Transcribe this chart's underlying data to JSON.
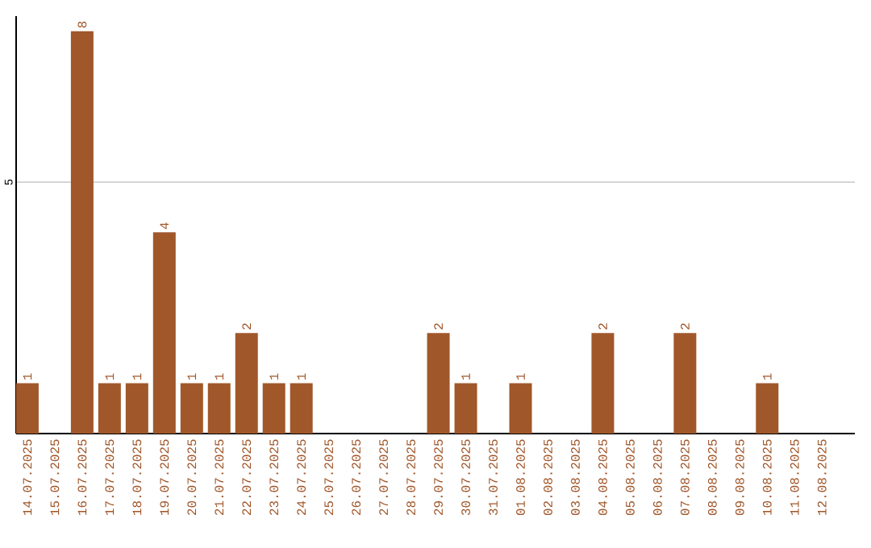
{
  "chart_data": {
    "type": "bar",
    "categories": [
      "14.07.2025",
      "15.07.2025",
      "16.07.2025",
      "17.07.2025",
      "18.07.2025",
      "19.07.2025",
      "20.07.2025",
      "21.07.2025",
      "22.07.2025",
      "23.07.2025",
      "24.07.2025",
      "25.07.2025",
      "26.07.2025",
      "27.07.2025",
      "28.07.2025",
      "29.07.2025",
      "30.07.2025",
      "31.07.2025",
      "01.08.2025",
      "02.08.2025",
      "03.08.2025",
      "04.08.2025",
      "05.08.2025",
      "06.08.2025",
      "07.08.2025",
      "08.08.2025",
      "09.08.2025",
      "10.08.2025",
      "11.08.2025",
      "12.08.2025"
    ],
    "values": [
      1,
      0,
      8,
      1,
      1,
      4,
      1,
      1,
      2,
      1,
      1,
      0,
      0,
      0,
      0,
      2,
      1,
      0,
      1,
      0,
      0,
      2,
      0,
      0,
      2,
      0,
      0,
      1,
      0,
      0
    ],
    "value_labels": [
      "1",
      null,
      "8",
      "1",
      "1",
      "4",
      "1",
      "1",
      "2",
      "1",
      "1",
      null,
      null,
      null,
      null,
      "2",
      "1",
      null,
      "1",
      null,
      null,
      "2",
      null,
      null,
      "2",
      null,
      null,
      "1",
      null,
      null
    ],
    "color": "#a0572a",
    "ylim": [
      0,
      8.3
    ],
    "yticks": [
      5
    ],
    "grid": "y"
  }
}
